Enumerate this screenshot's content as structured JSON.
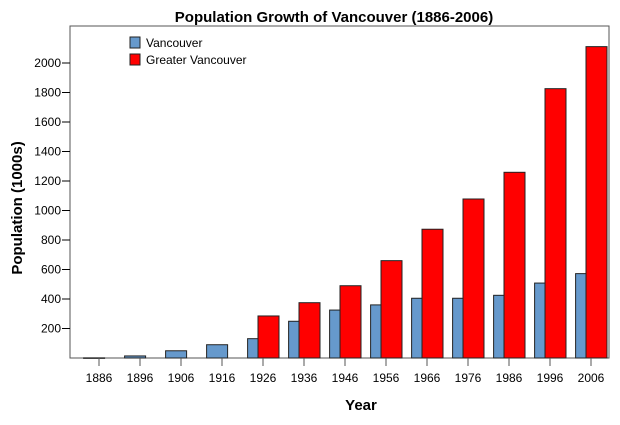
{
  "chart_data": {
    "type": "bar",
    "title": "Population Growth of Vancouver (1886-2006)",
    "xlabel": "Year",
    "ylabel": "Population (1000s)",
    "categories": [
      "1886",
      "1896",
      "1906",
      "1916",
      "1926",
      "1936",
      "1946",
      "1956",
      "1966",
      "1976",
      "1986",
      "1996",
      "2006"
    ],
    "yticks": [
      200,
      400,
      600,
      800,
      1000,
      1200,
      1400,
      1600,
      1800,
      2000
    ],
    "ylim": [
      0,
      2250
    ],
    "grid": false,
    "legend_position": "top-left",
    "series": [
      {
        "name": "Vancouver",
        "color": "#6699cc",
        "values": [
          1,
          14,
          49,
          90,
          131,
          249,
          325,
          360,
          405,
          405,
          425,
          508,
          572
        ]
      },
      {
        "name": "Greater Vancouver",
        "color": "#ff0000",
        "values": [
          null,
          null,
          null,
          null,
          285,
          375,
          490,
          660,
          873,
          1078,
          1259,
          1826,
          2111
        ]
      }
    ]
  }
}
